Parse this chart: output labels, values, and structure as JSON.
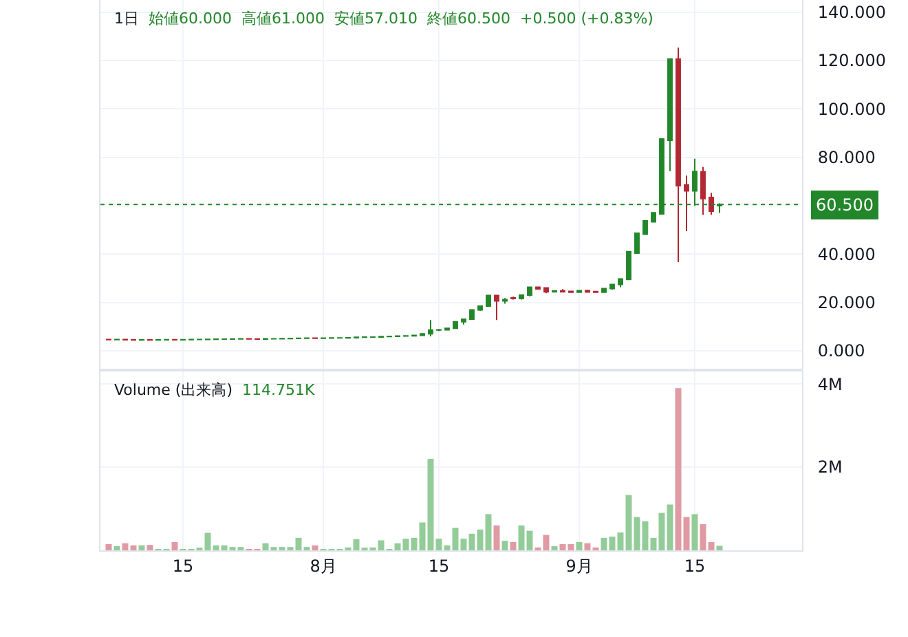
{
  "chart_data": [
    {
      "type": "candlestick",
      "title": "1日",
      "annotations": [
        "始値60.000",
        "高値61.000",
        "安値57.010",
        "終値60.500",
        "+0.500 (+0.83%)"
      ],
      "x": [
        "--07-06",
        "--07-07",
        "--07-08",
        "--07-09",
        "--07-10",
        "--07-11",
        "--07-12",
        "--07-13",
        "--07-14",
        "--07-15",
        "--07-16",
        "--07-17",
        "--07-18",
        "--07-19",
        "--07-20",
        "--07-21",
        "--07-22",
        "--07-23",
        "--07-24",
        "--07-25",
        "--07-26",
        "--07-27",
        "--07-28",
        "--07-29",
        "--07-30",
        "--07-31",
        "--08-01",
        "--08-02",
        "--08-03",
        "--08-04",
        "--08-05",
        "--08-06",
        "--08-07",
        "--08-08",
        "--08-09",
        "--08-10",
        "--08-11",
        "--08-12",
        "--08-13",
        "--08-14",
        "--08-15",
        "--08-16",
        "--08-17",
        "--08-18",
        "--08-19",
        "--08-20",
        "--08-21",
        "--08-22",
        "--08-23",
        "--08-24",
        "--08-25",
        "--08-26",
        "--08-27",
        "--08-28",
        "--08-29",
        "--08-30",
        "--08-31",
        "--09-01",
        "--09-02",
        "--09-03",
        "--09-04",
        "--09-05",
        "--09-06",
        "--09-07",
        "--09-08",
        "--09-09",
        "--09-10",
        "--09-11",
        "--09-12",
        "--09-13",
        "--09-14",
        "--09-15",
        "--09-16",
        "--09-17",
        "--09-18"
      ],
      "ohlc": [
        [
          4.7,
          4.8,
          4.5,
          4.6
        ],
        [
          4.6,
          4.7,
          4.5,
          4.65
        ],
        [
          4.65,
          4.7,
          4.5,
          4.55
        ],
        [
          4.55,
          4.6,
          4.45,
          4.5
        ],
        [
          4.5,
          4.6,
          4.45,
          4.55
        ],
        [
          4.55,
          4.6,
          4.45,
          4.5
        ],
        [
          4.5,
          4.6,
          4.45,
          4.55
        ],
        [
          4.55,
          4.6,
          4.5,
          4.6
        ],
        [
          4.6,
          4.65,
          4.5,
          4.55
        ],
        [
          4.55,
          4.6,
          4.5,
          4.6
        ],
        [
          4.6,
          4.65,
          4.55,
          4.65
        ],
        [
          4.65,
          4.7,
          4.6,
          4.7
        ],
        [
          4.7,
          4.9,
          4.65,
          4.75
        ],
        [
          4.75,
          4.8,
          4.7,
          4.8
        ],
        [
          4.8,
          4.85,
          4.75,
          4.85
        ],
        [
          4.85,
          4.9,
          4.8,
          4.9
        ],
        [
          4.9,
          4.95,
          4.85,
          4.95
        ],
        [
          4.95,
          5.0,
          4.85,
          4.9
        ],
        [
          4.9,
          4.95,
          4.8,
          4.85
        ],
        [
          4.85,
          5.0,
          4.8,
          4.95
        ],
        [
          4.95,
          5.0,
          4.9,
          5.0
        ],
        [
          5.0,
          5.05,
          4.95,
          5.05
        ],
        [
          5.05,
          5.1,
          5.0,
          5.1
        ],
        [
          5.1,
          5.3,
          5.05,
          5.2
        ],
        [
          5.2,
          5.25,
          5.15,
          5.25
        ],
        [
          5.25,
          5.3,
          5.15,
          5.2
        ],
        [
          5.2,
          5.25,
          5.15,
          5.25
        ],
        [
          5.25,
          5.3,
          5.2,
          5.3
        ],
        [
          5.3,
          5.35,
          5.25,
          5.35
        ],
        [
          5.35,
          5.4,
          5.3,
          5.4
        ],
        [
          5.4,
          5.7,
          5.35,
          5.6
        ],
        [
          5.6,
          5.65,
          5.55,
          5.65
        ],
        [
          5.65,
          5.7,
          5.6,
          5.7
        ],
        [
          5.7,
          6.1,
          5.65,
          5.9
        ],
        [
          5.9,
          6.0,
          5.85,
          5.95
        ],
        [
          5.95,
          6.2,
          5.9,
          6.1
        ],
        [
          6.1,
          6.3,
          6.0,
          6.2
        ],
        [
          6.2,
          6.5,
          6.1,
          6.4
        ],
        [
          6.4,
          7.2,
          6.3,
          7.0
        ],
        [
          7.0,
          12.7,
          6.0,
          8.6
        ],
        [
          8.6,
          9.0,
          8.2,
          8.7
        ],
        [
          8.7,
          9.5,
          8.5,
          9.3
        ],
        [
          9.3,
          12.2,
          9.0,
          12.0
        ],
        [
          12.0,
          13.3,
          10.9,
          13.1
        ],
        [
          13.1,
          17.0,
          13.0,
          16.9
        ],
        [
          16.9,
          18.7,
          16.5,
          18.5
        ],
        [
          18.5,
          23.0,
          18.3,
          22.9
        ],
        [
          22.9,
          23.0,
          12.7,
          20.6
        ],
        [
          20.6,
          21.8,
          19.5,
          21.2
        ],
        [
          21.9,
          22.4,
          21.2,
          21.6
        ],
        [
          21.6,
          23.2,
          21.2,
          23.0
        ],
        [
          23.0,
          26.6,
          22.5,
          26.3
        ],
        [
          26.3,
          26.5,
          25.4,
          25.6
        ],
        [
          26.0,
          26.2,
          23.8,
          24.4
        ],
        [
          24.4,
          25.0,
          24.2,
          24.7
        ],
        [
          24.8,
          25.5,
          24.2,
          24.4
        ],
        [
          24.6,
          24.9,
          24.0,
          24.2
        ],
        [
          24.2,
          25.1,
          24.0,
          24.9
        ],
        [
          24.9,
          25.2,
          24.1,
          24.3
        ],
        [
          24.5,
          24.8,
          24.0,
          24.2
        ],
        [
          24.2,
          25.9,
          24.0,
          25.7
        ],
        [
          25.7,
          27.5,
          25.2,
          27.4
        ],
        [
          27.4,
          29.8,
          26.3,
          29.7
        ],
        [
          29.5,
          41.2,
          29.2,
          41.0
        ],
        [
          40.4,
          48.8,
          40.2,
          48.6
        ],
        [
          48.2,
          53.8,
          48.0,
          53.7
        ],
        [
          53.3,
          57.2,
          53.0,
          57.1
        ],
        [
          56.6,
          87.8,
          56.4,
          87.6
        ],
        [
          87.0,
          120.8,
          74.3,
          120.6
        ],
        [
          120.6,
          125.3,
          36.7,
          68.2
        ],
        [
          68.6,
          72.4,
          49.5,
          66.1
        ],
        [
          66.1,
          79.4,
          60.0,
          74.1
        ],
        [
          74.0,
          76.0,
          56.2,
          62.9
        ],
        [
          63.4,
          65.3,
          56.2,
          57.7
        ],
        [
          60.0,
          61.0,
          57.01,
          60.5
        ]
      ],
      "colors": [
        "#b22833",
        "#22862a",
        "#b22833",
        "#b22833",
        "#22862a",
        "#b22833",
        "#22862a",
        "#22862a",
        "#b22833",
        "#22862a",
        "#22862a",
        "#22862a",
        "#22862a",
        "#22862a",
        "#22862a",
        "#22862a",
        "#22862a",
        "#b22833",
        "#b22833",
        "#22862a",
        "#22862a",
        "#22862a",
        "#22862a",
        "#22862a",
        "#22862a",
        "#b22833",
        "#22862a",
        "#22862a",
        "#22862a",
        "#22862a",
        "#22862a",
        "#22862a",
        "#22862a",
        "#22862a",
        "#22862a",
        "#22862a",
        "#22862a",
        "#22862a",
        "#22862a",
        "#22862a",
        "#22862a",
        "#22862a",
        "#22862a",
        "#22862a",
        "#22862a",
        "#22862a",
        "#22862a",
        "#b22833",
        "#22862a",
        "#b22833",
        "#22862a",
        "#22862a",
        "#b22833",
        "#b22833",
        "#22862a",
        "#b22833",
        "#b22833",
        "#22862a",
        "#b22833",
        "#b22833",
        "#22862a",
        "#22862a",
        "#22862a",
        "#22862a",
        "#22862a",
        "#22862a",
        "#22862a",
        "#22862a",
        "#22862a",
        "#b22833",
        "#b22833",
        "#22862a",
        "#b22833",
        "#b22833",
        "#22862a"
      ],
      "xlim": [
        "--07-05",
        "--09-28"
      ],
      "xticks": [
        {
          "value": "--07-15",
          "label": "15"
        },
        {
          "value": "--08-01",
          "label": "8月"
        },
        {
          "value": "--08-15",
          "label": "15"
        },
        {
          "value": "--09-01",
          "label": "9月"
        },
        {
          "value": "--09-15",
          "label": "15"
        }
      ],
      "ylim": [
        -7.4,
        145
      ],
      "yticks": [
        {
          "value": 0,
          "label": "0.000"
        },
        {
          "value": 20,
          "label": "20.000"
        },
        {
          "value": 40,
          "label": "40.000"
        },
        {
          "value": 80,
          "label": "80.000"
        },
        {
          "value": 100,
          "label": "100.000"
        },
        {
          "value": 120,
          "label": "120.000"
        },
        {
          "value": 140,
          "label": "140.000"
        }
      ],
      "ref_lines": [
        {
          "axis": "y",
          "value": 60.5,
          "label": "60.500",
          "color": "#22862a",
          "line_style": "dotted"
        }
      ],
      "tick_labels": "y",
      "grid": true
    },
    {
      "type": "bar",
      "title": "Volume (出来高)",
      "annotations": [
        "114.751K"
      ],
      "x": [
        "--07-06",
        "--07-07",
        "--07-08",
        "--07-09",
        "--07-10",
        "--07-11",
        "--07-12",
        "--07-13",
        "--07-14",
        "--07-15",
        "--07-16",
        "--07-17",
        "--07-18",
        "--07-19",
        "--07-20",
        "--07-21",
        "--07-22",
        "--07-23",
        "--07-24",
        "--07-25",
        "--07-26",
        "--07-27",
        "--07-28",
        "--07-29",
        "--07-30",
        "--07-31",
        "--08-01",
        "--08-02",
        "--08-03",
        "--08-04",
        "--08-05",
        "--08-06",
        "--08-07",
        "--08-08",
        "--08-09",
        "--08-10",
        "--08-11",
        "--08-12",
        "--08-13",
        "--08-14",
        "--08-15",
        "--08-16",
        "--08-17",
        "--08-18",
        "--08-19",
        "--08-20",
        "--08-21",
        "--08-22",
        "--08-23",
        "--08-24",
        "--08-25",
        "--08-26",
        "--08-27",
        "--08-28",
        "--08-29",
        "--08-30",
        "--08-31",
        "--09-01",
        "--09-02",
        "--09-03",
        "--09-04",
        "--09-05",
        "--09-06",
        "--09-07",
        "--09-08",
        "--09-09",
        "--09-10",
        "--09-11",
        "--09-12",
        "--09-13",
        "--09-14",
        "--09-15",
        "--09-16",
        "--09-17",
        "--09-18"
      ],
      "values": [
        0.15,
        0.1,
        0.17,
        0.12,
        0.12,
        0.13,
        0.03,
        0.03,
        0.2,
        0.02,
        0.03,
        0.06,
        0.42,
        0.12,
        0.12,
        0.08,
        0.08,
        0.03,
        0.03,
        0.17,
        0.08,
        0.08,
        0.08,
        0.3,
        0.08,
        0.12,
        0.03,
        0.03,
        0.03,
        0.07,
        0.27,
        0.04,
        0.07,
        0.24,
        0.03,
        0.17,
        0.28,
        0.3,
        0.67,
        2.2,
        0.28,
        0.12,
        0.54,
        0.28,
        0.4,
        0.5,
        0.87,
        0.6,
        0.23,
        0.2,
        0.6,
        0.47,
        0.07,
        0.37,
        0.1,
        0.15,
        0.15,
        0.2,
        0.17,
        0.07,
        0.3,
        0.33,
        0.43,
        1.33,
        0.8,
        0.7,
        0.3,
        0.9,
        1.1,
        3.9,
        0.8,
        0.87,
        0.63,
        0.2,
        0.11
      ],
      "colors": [
        "#e09aa3",
        "#93cc98",
        "#e09aa3",
        "#e09aa3",
        "#93cc98",
        "#e09aa3",
        "#93cc98",
        "#93cc98",
        "#e09aa3",
        "#93cc98",
        "#93cc98",
        "#93cc98",
        "#93cc98",
        "#93cc98",
        "#93cc98",
        "#93cc98",
        "#93cc98",
        "#e09aa3",
        "#e09aa3",
        "#93cc98",
        "#93cc98",
        "#93cc98",
        "#93cc98",
        "#93cc98",
        "#93cc98",
        "#e09aa3",
        "#93cc98",
        "#93cc98",
        "#93cc98",
        "#93cc98",
        "#93cc98",
        "#93cc98",
        "#93cc98",
        "#93cc98",
        "#93cc98",
        "#93cc98",
        "#93cc98",
        "#93cc98",
        "#93cc98",
        "#93cc98",
        "#93cc98",
        "#93cc98",
        "#93cc98",
        "#93cc98",
        "#93cc98",
        "#93cc98",
        "#93cc98",
        "#e09aa3",
        "#93cc98",
        "#e09aa3",
        "#93cc98",
        "#93cc98",
        "#e09aa3",
        "#e09aa3",
        "#93cc98",
        "#e09aa3",
        "#e09aa3",
        "#93cc98",
        "#e09aa3",
        "#e09aa3",
        "#93cc98",
        "#93cc98",
        "#93cc98",
        "#93cc98",
        "#93cc98",
        "#93cc98",
        "#93cc98",
        "#93cc98",
        "#93cc98",
        "#e09aa3",
        "#e09aa3",
        "#93cc98",
        "#e09aa3",
        "#e09aa3",
        "#93cc98"
      ],
      "xlim": [
        "--07-05",
        "--09-28"
      ],
      "xticks": [
        {
          "value": "--07-15",
          "label": "15"
        },
        {
          "value": "--08-01",
          "label": "8月"
        },
        {
          "value": "--08-15",
          "label": "15"
        },
        {
          "value": "--09-01",
          "label": "9月"
        },
        {
          "value": "--09-15",
          "label": "15"
        }
      ],
      "ylim": [
        0,
        4.3
      ],
      "yticks": [
        {
          "value": 2,
          "label": "2M"
        },
        {
          "value": 4,
          "label": "4M"
        }
      ],
      "grid": true
    }
  ]
}
